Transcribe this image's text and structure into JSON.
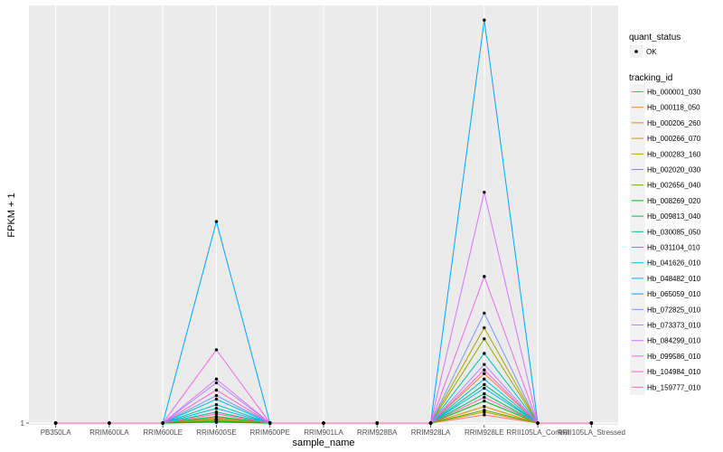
{
  "chart_data": {
    "type": "line",
    "xlabel": "sample_name",
    "ylabel": "FPKM + 1",
    "y_ticks": [
      {
        "value": 1,
        "label": "1"
      }
    ],
    "ylim": [
      0.95,
      12.4
    ],
    "categories": [
      "PB350LA",
      "RRIM600LA",
      "RRIM600LE",
      "RRIM600SE",
      "RRIM600PE",
      "RRIM901LA",
      "RRIM928BA",
      "RRIM928LA",
      "RRIM928LE",
      "RRII105LA_Control",
      "RRII105LA_Stressed"
    ],
    "legend": {
      "position": "right",
      "quant_status_title": "quant_status",
      "quant_status_items": [
        "OK"
      ],
      "tracking_title": "tracking_id"
    },
    "series": [
      {
        "name": "Hb_000001_030",
        "color": "#F8766D",
        "values": [
          1,
          1,
          1,
          1.12,
          1,
          1,
          1,
          1,
          1.22,
          1,
          1
        ]
      },
      {
        "name": "Hb_000118_050",
        "color": "#EC8239",
        "values": [
          1,
          1,
          1,
          1.08,
          1,
          1,
          1,
          1,
          2.35,
          1,
          1
        ]
      },
      {
        "name": "Hb_000206_260",
        "color": "#DB8E00",
        "values": [
          1,
          1,
          1,
          1.15,
          1,
          1,
          1,
          1,
          1.45,
          1,
          1
        ]
      },
      {
        "name": "Hb_000266_070",
        "color": "#C79800",
        "values": [
          1,
          1,
          1,
          1.06,
          1,
          1,
          1,
          1,
          1.3,
          1,
          1
        ]
      },
      {
        "name": "Hb_000283_160",
        "color": "#AEA200",
        "values": [
          1,
          1,
          1,
          1.1,
          1,
          1,
          1,
          1,
          3.6,
          1,
          1
        ]
      },
      {
        "name": "Hb_002020_030",
        "color": "#8FAA00",
        "values": [
          1,
          1,
          1,
          1.05,
          1,
          1,
          1,
          1,
          3.3,
          1,
          1
        ]
      },
      {
        "name": "Hb_002656_040",
        "color": "#64B200",
        "values": [
          1,
          1,
          1,
          1.02,
          1,
          1,
          1,
          1,
          1.35,
          1,
          1
        ]
      },
      {
        "name": "Hb_008269_020",
        "color": "#00B81B",
        "values": [
          1,
          1,
          1,
          1.04,
          1,
          1,
          1,
          1,
          1.6,
          1,
          1
        ]
      },
      {
        "name": "Hb_009813_040",
        "color": "#00BD5C",
        "values": [
          1,
          1,
          1,
          1.18,
          1,
          1,
          1,
          1,
          1.8,
          1,
          1
        ]
      },
      {
        "name": "Hb_030085_050",
        "color": "#00C08E",
        "values": [
          1,
          1,
          1,
          1.3,
          1,
          1,
          1,
          1,
          2.05,
          1,
          1
        ]
      },
      {
        "name": "Hb_031104_010",
        "color": "#00C1B7",
        "values": [
          1,
          1,
          1,
          1.5,
          1,
          1,
          1,
          1,
          2.9,
          1,
          1
        ]
      },
      {
        "name": "Hb_041626_010",
        "color": "#00BDDC",
        "values": [
          1,
          1,
          1,
          1.65,
          1,
          1,
          1,
          1,
          2.2,
          1,
          1
        ]
      },
      {
        "name": "Hb_048482_010",
        "color": "#00B2F3",
        "values": [
          1,
          1,
          1,
          1.4,
          1,
          1,
          1,
          1,
          1.95,
          1,
          1
        ]
      },
      {
        "name": "Hb_065059_010",
        "color": "#00A6FF",
        "values": [
          1,
          1,
          1,
          6.5,
          1,
          1,
          1,
          1,
          12.0,
          1,
          1
        ]
      },
      {
        "name": "Hb_072825_010",
        "color": "#7C96FF",
        "values": [
          1,
          1,
          1,
          1.75,
          1,
          1,
          1,
          1,
          4.0,
          1,
          1
        ]
      },
      {
        "name": "Hb_073373_010",
        "color": "#B385FF",
        "values": [
          1,
          1,
          1,
          2.1,
          1,
          1,
          1,
          1,
          2.6,
          1,
          1
        ]
      },
      {
        "name": "Hb_084299_010",
        "color": "#D874FD",
        "values": [
          1,
          1,
          1,
          2.2,
          1,
          1,
          1,
          1,
          7.3,
          1,
          1
        ]
      },
      {
        "name": "Hb_099586_010",
        "color": "#EF67EB",
        "values": [
          1,
          1,
          1,
          3.0,
          1,
          1,
          1,
          1,
          5.0,
          1,
          1
        ]
      },
      {
        "name": "Hb_104984_010",
        "color": "#FD61D3",
        "values": [
          1,
          1,
          1,
          1.9,
          1,
          1,
          1,
          1,
          2.45,
          1,
          1
        ]
      },
      {
        "name": "Hb_159777_010",
        "color": "#FF65AE",
        "values": [
          1,
          1,
          1,
          1.25,
          1,
          1,
          1,
          1,
          1.7,
          1,
          1
        ]
      }
    ]
  }
}
